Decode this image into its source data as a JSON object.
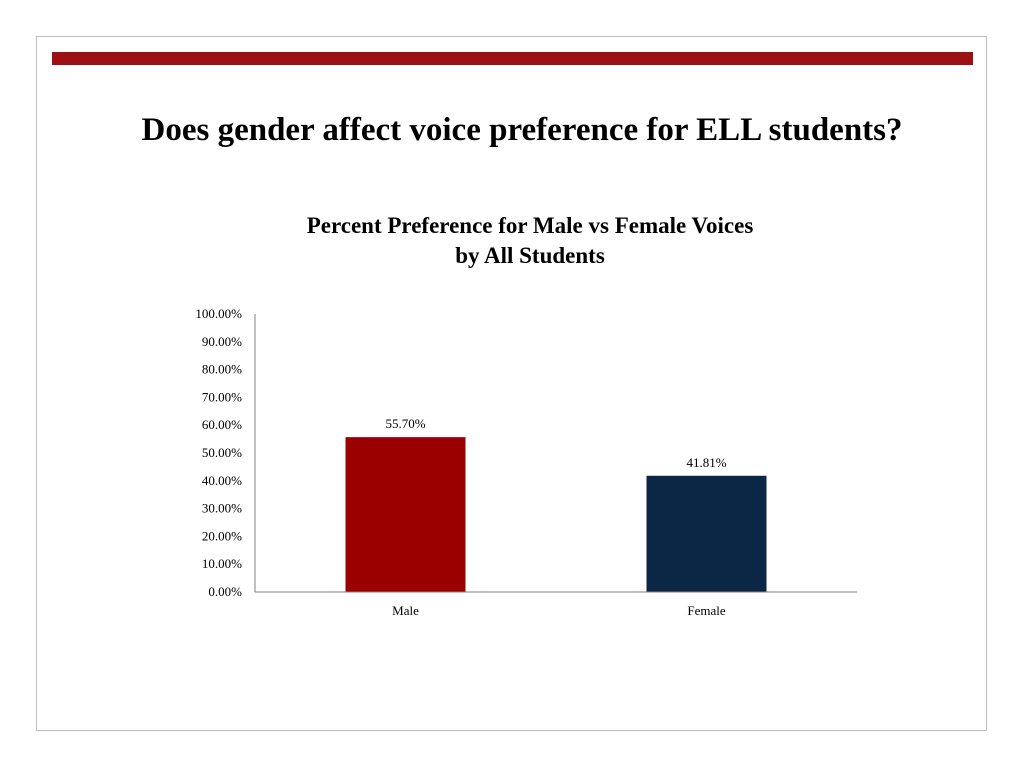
{
  "slide": {
    "title": "Does gender affect voice preference for ELL students?"
  },
  "colors": {
    "accent_bar": "#9b1114",
    "male_bar": "#9b0000",
    "female_bar": "#0c2645",
    "frame_border": "#bdbdbd"
  },
  "chart_data": {
    "type": "bar",
    "title": "Percent Preference for Male vs Female Voices",
    "subtitle": "by All Students",
    "categories": [
      "Male",
      "Female"
    ],
    "values": [
      55.7,
      41.81
    ],
    "data_labels": [
      "55.70%",
      "41.81%"
    ],
    "ylim": [
      0,
      100
    ],
    "yticks": [
      0,
      10,
      20,
      30,
      40,
      50,
      60,
      70,
      80,
      90,
      100
    ],
    "ytick_labels": [
      "0.00%",
      "10.00%",
      "20.00%",
      "30.00%",
      "40.00%",
      "50.00%",
      "60.00%",
      "70.00%",
      "80.00%",
      "90.00%",
      "100.00%"
    ],
    "xlabel": "",
    "ylabel": "",
    "grid": false,
    "legend": false
  }
}
